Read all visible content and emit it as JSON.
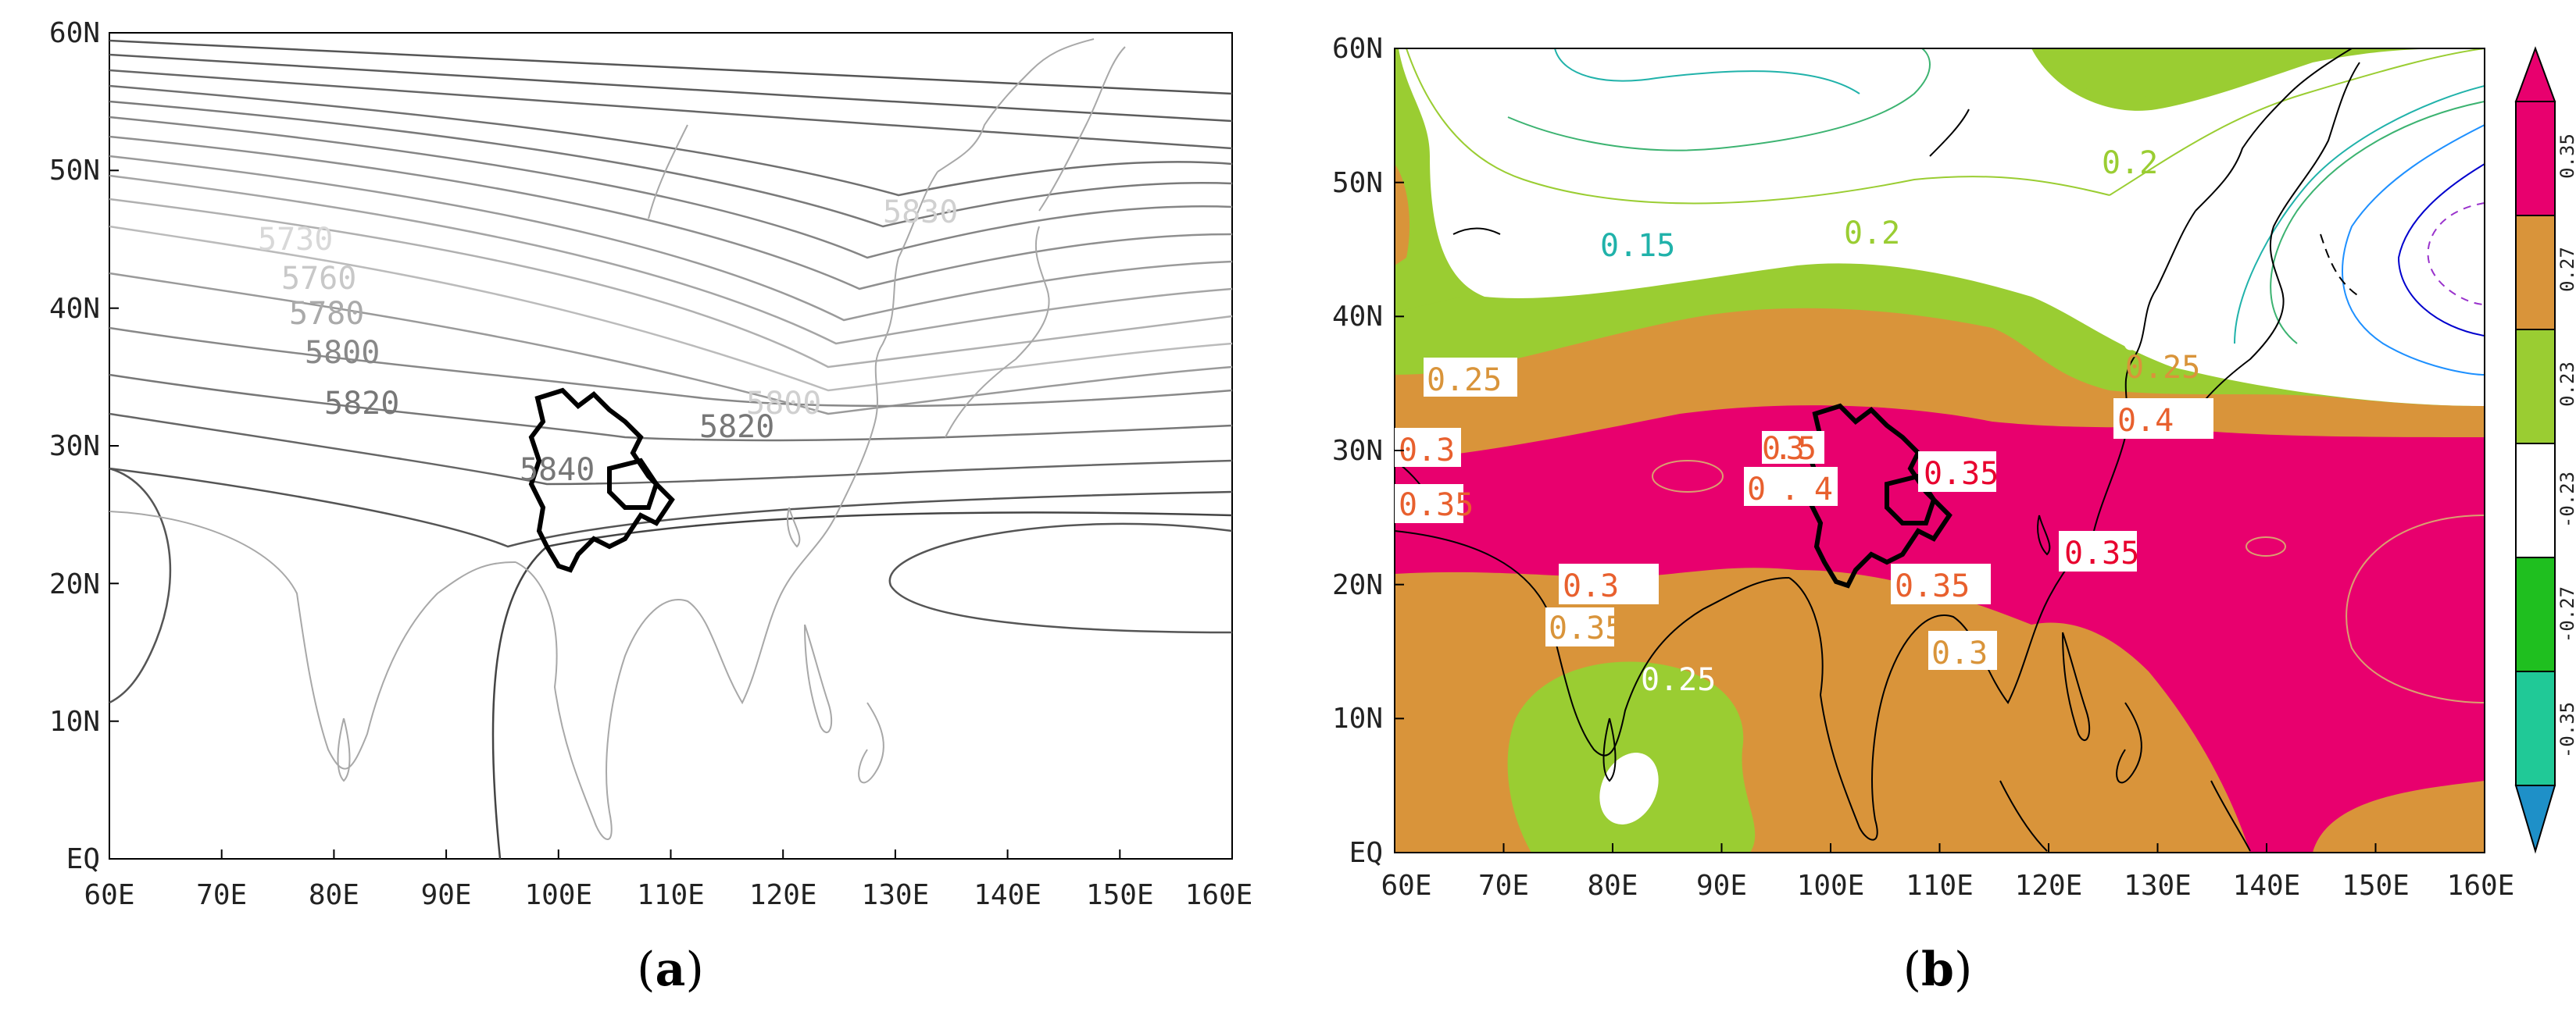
{
  "panels": [
    {
      "id": "a",
      "label": "(a)",
      "label_letter": "a",
      "xticks": [
        "60E",
        "70E",
        "80E",
        "90E",
        "100E",
        "110E",
        "120E",
        "130E",
        "140E",
        "150E",
        "160E"
      ],
      "yticks": [
        "EQ",
        "10N",
        "20N",
        "30N",
        "40N",
        "50N",
        "60N"
      ],
      "contour_labels": [
        "5730",
        "5760",
        "5780",
        "5800",
        "5820",
        "5840",
        "5820",
        "5800",
        "5830"
      ]
    },
    {
      "id": "b",
      "label": "(b)",
      "label_letter": "b",
      "xticks": [
        "60E",
        "70E",
        "80E",
        "90E",
        "100E",
        "110E",
        "120E",
        "130E",
        "140E",
        "150E",
        "160E"
      ],
      "yticks": [
        "EQ",
        "10N",
        "20N",
        "30N",
        "40N",
        "50N",
        "60N"
      ],
      "contour_labels": [
        "0.15",
        "0.2",
        "0.2",
        "0.25",
        "0.3",
        "0.35",
        "0.35",
        "0.4",
        "0.35",
        "0.4",
        "0.35",
        "0.3",
        "0.35",
        "0.35",
        "0.3",
        "0.25",
        "0.2",
        "0.25"
      ],
      "colorbar": {
        "ticks": [
          "0.35",
          "0.27",
          "0.23",
          "-0.23",
          "-0.27",
          "-0.35"
        ],
        "colors": [
          "#e8006e",
          "#d9943a",
          "#9acd32",
          "#ffffff",
          "#1fbf1f",
          "#20c997",
          "#1e90c8"
        ]
      }
    }
  ],
  "colors": {
    "magenta": "#e8006e",
    "orange": "#d9943a",
    "lightgreen": "#9acd32",
    "coast_gray": "#a8a8a8",
    "contour_dark": "#555555"
  }
}
